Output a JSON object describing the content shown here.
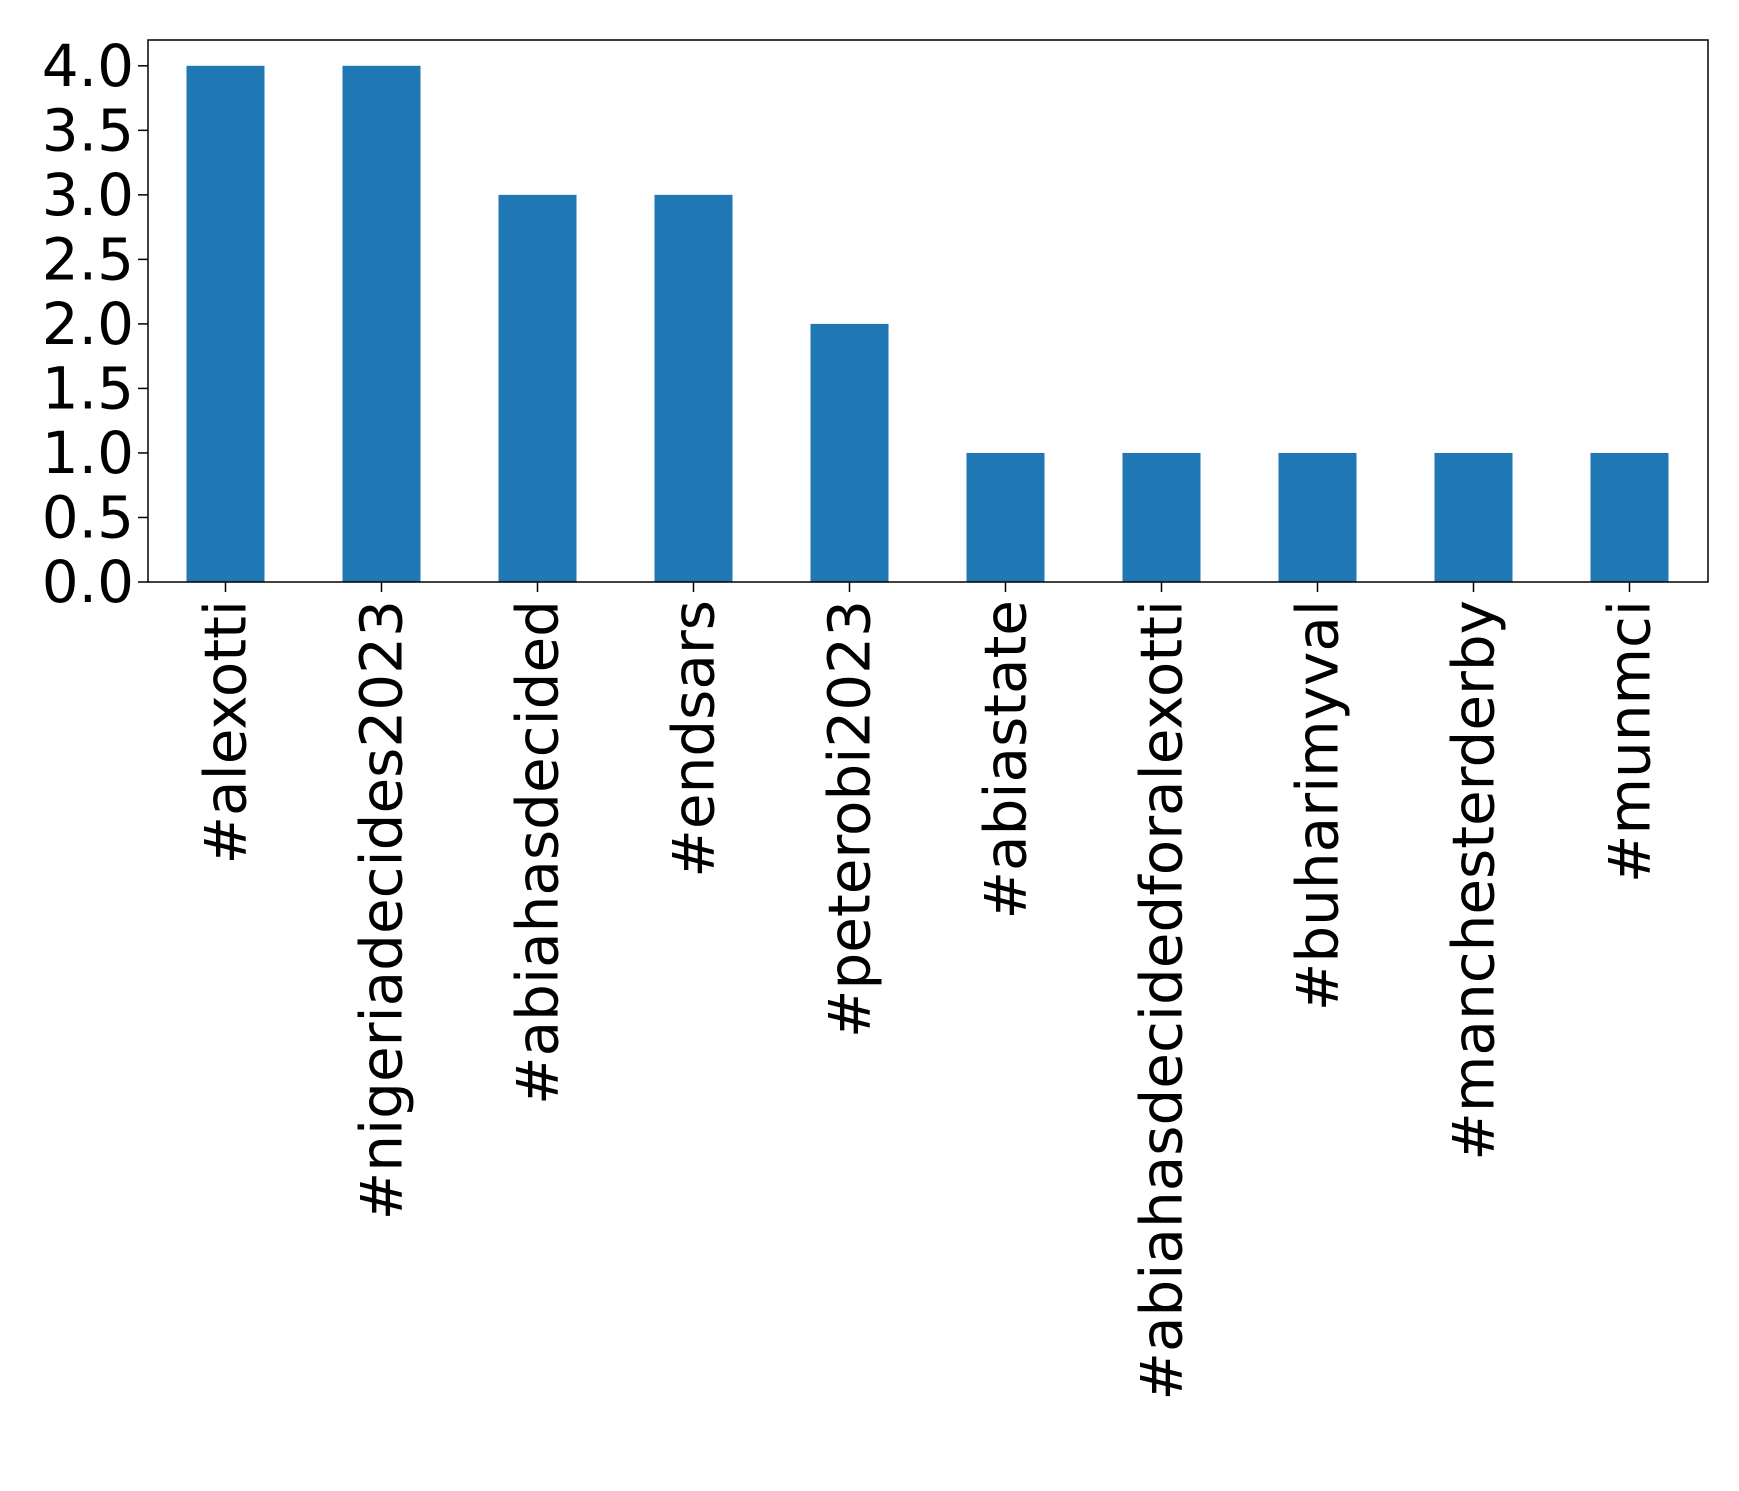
{
  "chart_data": {
    "type": "bar",
    "categories": [
      "#alexotti",
      "#nigeriadecides2023",
      "#abiahasdecided",
      "#endsars",
      "#peterobi2023",
      "#abiastate",
      "#abiahasdecidedforalexotti",
      "#buharimyval",
      "#manchesterderby",
      "#munmci"
    ],
    "values": [
      4,
      4,
      3,
      3,
      2,
      1,
      1,
      1,
      1,
      1
    ],
    "ylim": [
      0,
      4.2
    ],
    "yticks": [
      "0.0",
      "0.5",
      "1.0",
      "1.5",
      "2.0",
      "2.5",
      "3.0",
      "3.5",
      "4.0"
    ],
    "title": "",
    "xlabel": "",
    "ylabel": "",
    "bar_color": "#1f77b4",
    "grid": false,
    "legend": "none"
  }
}
